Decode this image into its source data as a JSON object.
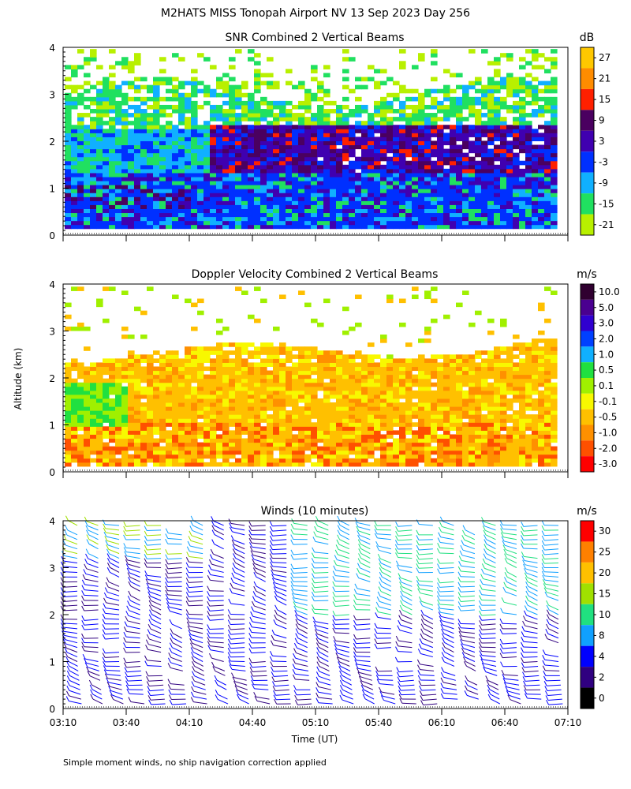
{
  "figure_title": "M2HATS MISS Tonopah Airport NV  13 Sep 2023 Day 256",
  "shared_ylabel": "Altitude (km)",
  "shared_xlabel": "Time (UT)",
  "footnote": "Simple moment winds, no ship navigation correction applied",
  "chart_data": [
    {
      "id": "snr",
      "type": "heatmap",
      "title": "SNR Combined 2 Vertical Beams",
      "units": "dB",
      "ylim": [
        0,
        4
      ],
      "yticks": [
        "0",
        "1",
        "2",
        "3",
        "4"
      ],
      "xlim": [
        "03:10",
        "07:10"
      ],
      "colorbar": {
        "labels": [
          "27",
          "21",
          "15",
          "9",
          "3",
          "-3",
          "-9",
          "-15",
          "-21"
        ],
        "colors": [
          "#ffc800",
          "#ff8c00",
          "#ff2000",
          "#4a0060",
          "#4000b0",
          "#0030ff",
          "#10b0ff",
          "#20e060",
          "#b8f000"
        ]
      },
      "description_levels": [
        {
          "alt_km": [
            0.2,
            1.3
          ],
          "snr_db": "-3 to 9"
        },
        {
          "alt_km": [
            1.3,
            2.3
          ],
          "snr_db": "3 to 15"
        },
        {
          "alt_km": [
            2.3,
            3.9
          ],
          "snr_db": "-21 to -9"
        }
      ]
    },
    {
      "id": "doppler",
      "type": "heatmap",
      "title": "Doppler Velocity Combined 2 Vertical Beams",
      "units": "m/s",
      "ylim": [
        0,
        4
      ],
      "yticks": [
        "0",
        "1",
        "2",
        "3",
        "4"
      ],
      "xlim": [
        "03:10",
        "07:10"
      ],
      "colorbar": {
        "labels": [
          "10.0",
          "5.0",
          "3.0",
          "2.0",
          "1.0",
          "0.5",
          "0.1",
          "-0.1",
          "-0.5",
          "-1.0",
          "-2.0",
          "-3.0"
        ],
        "colors": [
          "#300030",
          "#4a0090",
          "#3000d0",
          "#0040ff",
          "#10b0ff",
          "#20e040",
          "#a0f000",
          "#f8f800",
          "#ffc000",
          "#ff9000",
          "#ff5000",
          "#ff0000"
        ]
      },
      "description_levels": [
        {
          "alt_km": [
            0.1,
            2.3
          ],
          "velocity_ms": "-0.5 to -1.0"
        },
        {
          "alt_km": [
            2.3,
            3.0
          ],
          "velocity_ms": "-0.1 to -0.5"
        }
      ]
    },
    {
      "id": "winds",
      "type": "barbs",
      "title": "Winds (10 minutes)",
      "units": "m/s",
      "ylim": [
        0,
        4
      ],
      "yticks": [
        "0",
        "1",
        "2",
        "3",
        "4"
      ],
      "xticks": [
        "03:10",
        "03:40",
        "04:10",
        "04:40",
        "05:10",
        "05:40",
        "06:10",
        "06:40",
        "07:10"
      ],
      "colorbar": {
        "labels": [
          "30",
          "25",
          "20",
          "15",
          "10",
          "8",
          "4",
          "2",
          "0"
        ],
        "colors": [
          "#ff0000",
          "#ff8000",
          "#ffc000",
          "#a0e000",
          "#20e080",
          "#10a0ff",
          "#0000ff",
          "#300080",
          "#000000"
        ]
      },
      "profile_interval_min": 10,
      "speed_range_ms": [
        2,
        20
      ]
    }
  ]
}
